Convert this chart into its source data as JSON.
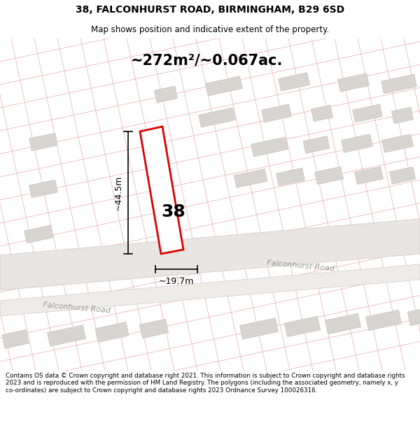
{
  "title": "38, FALCONHURST ROAD, BIRMINGHAM, B29 6SD",
  "subtitle": "Map shows position and indicative extent of the property.",
  "area_label": "~272m²/~0.067ac.",
  "number_label": "38",
  "dim_width_label": "~19.7m",
  "dim_height_label": "~44.5m",
  "road_label_upper": "Falconhurst Road",
  "road_label_lower": "Falconhurst Road",
  "footer": "Contains OS data © Crown copyright and database right 2021. This information is subject to Crown copyright and database rights 2023 and is reproduced with the permission of HM Land Registry. The polygons (including the associated geometry, namely x, y co-ordinates) are subject to Crown copyright and database rights 2023 Ordnance Survey 100026316.",
  "map_bg": "#f7f3f1",
  "road_band_color": "#e8e5e2",
  "road_band2_color": "#eeebe8",
  "block_fill": "#d8d4d0",
  "block_edge": "#c8c4c0",
  "line_color": "#e8aaaa",
  "property_fill": "#ffffff",
  "property_edge": "#dd0000",
  "title_fs": 10,
  "subtitle_fs": 8.5,
  "area_fs": 15,
  "number_fs": 18,
  "dim_fs": 9,
  "road_fs": 8,
  "footer_fs": 6.3,
  "figsize": [
    6.0,
    6.25
  ],
  "dpi": 100
}
